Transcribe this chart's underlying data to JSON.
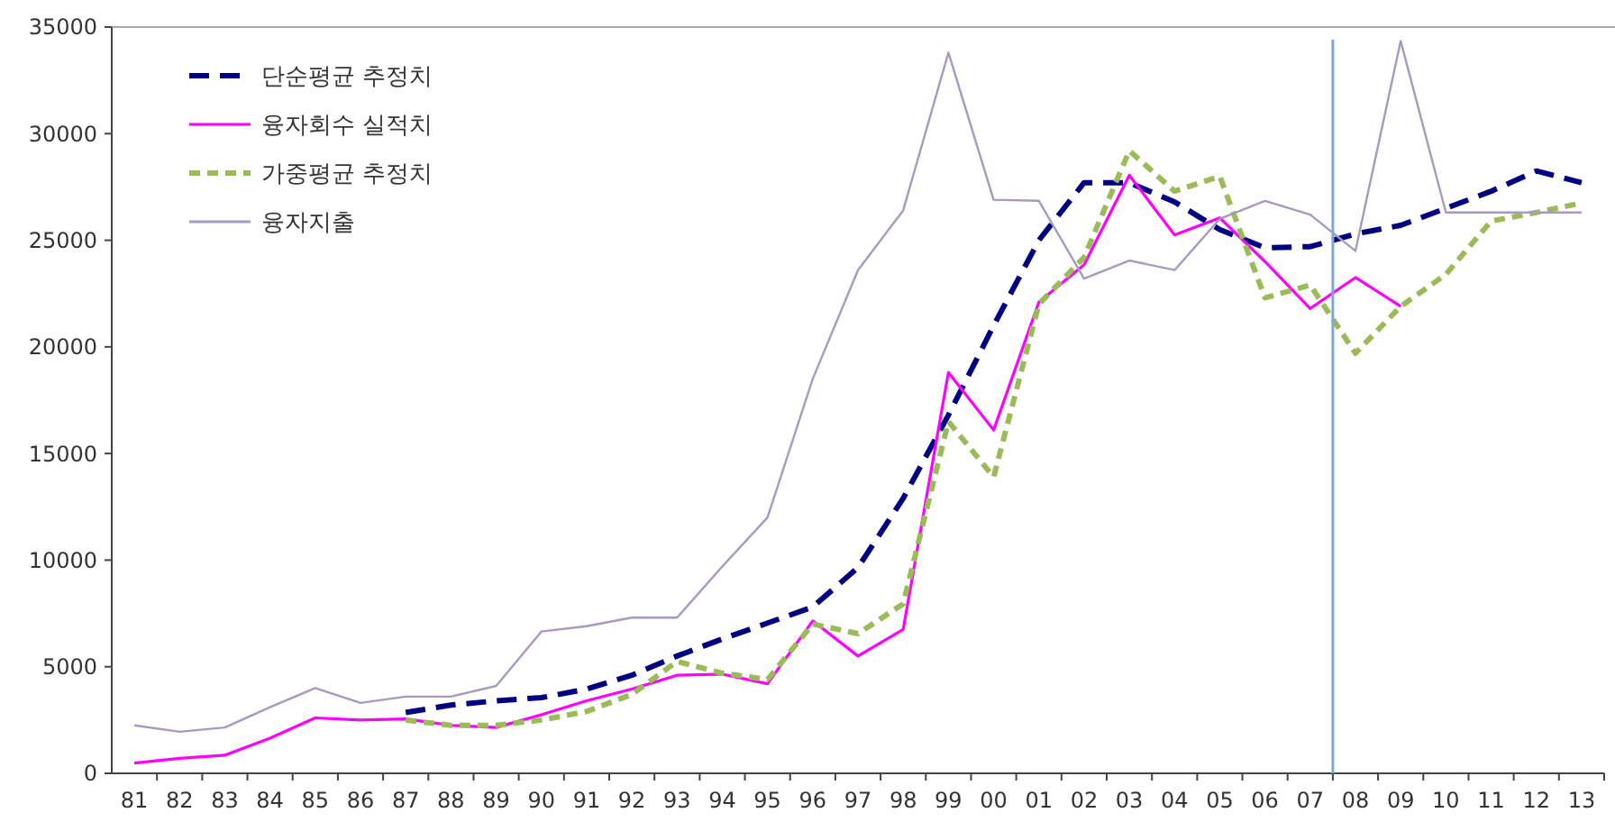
{
  "chart_data": {
    "type": "line",
    "categories": [
      "81",
      "82",
      "83",
      "84",
      "85",
      "86",
      "87",
      "88",
      "89",
      "90",
      "91",
      "92",
      "93",
      "94",
      "95",
      "96",
      "97",
      "98",
      "99",
      "00",
      "01",
      "02",
      "03",
      "04",
      "05",
      "06",
      "07",
      "08",
      "09",
      "10",
      "11",
      "12",
      "13"
    ],
    "ylim": [
      0,
      35000
    ],
    "yticks": [
      0,
      5000,
      10000,
      15000,
      20000,
      25000,
      30000,
      35000
    ],
    "grid": false,
    "legend": "top left",
    "marker": "none",
    "series": [
      {
        "name": "단순평균 추정치",
        "color": "#000080",
        "line_style": "dashed",
        "values": [
          null,
          null,
          null,
          null,
          null,
          null,
          2850,
          3200,
          3400,
          3550,
          3950,
          4600,
          5500,
          6300,
          7050,
          7800,
          9650,
          12900,
          16800,
          21000,
          25000,
          27700,
          27700,
          26800,
          25500,
          24650,
          24700,
          25300,
          25700,
          26500,
          27300,
          28250,
          27700
        ]
      },
      {
        "name": "융자회수 실적치",
        "color": "#ff00ff",
        "line_style": "solid",
        "values": [
          480,
          700,
          850,
          1650,
          2600,
          2500,
          2550,
          2250,
          2150,
          2750,
          3400,
          3950,
          4600,
          4650,
          4200,
          7150,
          5500,
          6750,
          18800,
          16100,
          22100,
          23850,
          28050,
          25250,
          26050,
          24000,
          21800,
          23250,
          21900,
          null,
          null,
          null,
          null
        ]
      },
      {
        "name": "가중평균 추정치",
        "color": "#9bbb59",
        "line_style": "dotted",
        "values": [
          null,
          null,
          null,
          null,
          null,
          null,
          2500,
          2250,
          2250,
          2500,
          2900,
          3700,
          5250,
          4700,
          4400,
          7000,
          6550,
          7950,
          16500,
          13900,
          22000,
          24200,
          29200,
          27300,
          28000,
          22300,
          22900,
          19700,
          21900,
          23400,
          25900,
          26300,
          26750
        ]
      },
      {
        "name": "융자지출",
        "color": "#a899c0",
        "line_style": "solid",
        "values": [
          2250,
          1950,
          2150,
          3100,
          4000,
          3300,
          3600,
          3600,
          4100,
          6650,
          6900,
          7300,
          7300,
          9700,
          12000,
          18500,
          23600,
          26400,
          33800,
          26900,
          26850,
          23200,
          24050,
          23600,
          26000,
          26850,
          26200,
          24500,
          34350,
          26300,
          26300,
          26300,
          26300
        ]
      }
    ],
    "ref_lines": [
      {
        "axis": "x",
        "value": "08",
        "color": "#7fa7d9"
      }
    ]
  }
}
